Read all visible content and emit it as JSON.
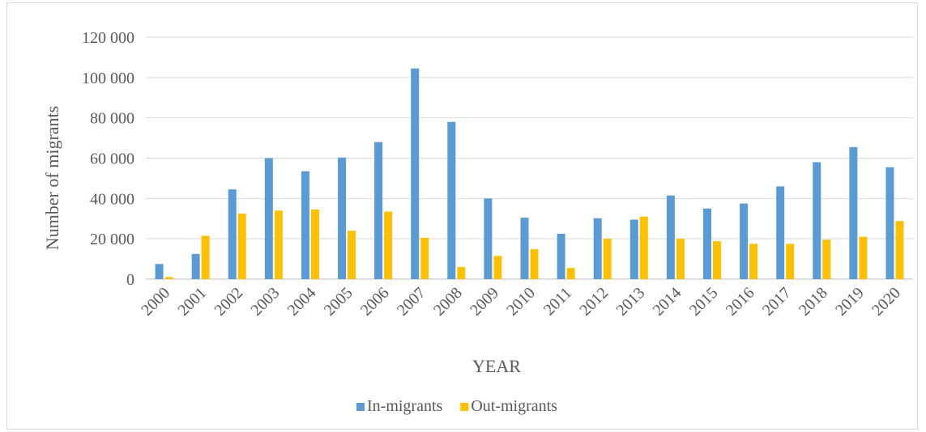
{
  "chart_data": {
    "type": "bar",
    "title": "",
    "xlabel": "YEAR",
    "ylabel": "Number of migrants",
    "ylim": [
      0,
      120000
    ],
    "yticks": [
      0,
      20000,
      40000,
      60000,
      80000,
      100000,
      120000
    ],
    "ytick_labels": [
      "0",
      "20 000",
      "40 000",
      "60 000",
      "80 000",
      "100 000",
      "120 000"
    ],
    "grid": true,
    "legend_position": "bottom",
    "categories": [
      "2000",
      "2001",
      "2002",
      "2003",
      "2004",
      "2005",
      "2006",
      "2007",
      "2008",
      "2009",
      "2010",
      "2011",
      "2012",
      "2013",
      "2014",
      "2015",
      "2016",
      "2017",
      "2018",
      "2019",
      "2020"
    ],
    "series": [
      {
        "name": "In-migrants",
        "color": "#5b9bd5",
        "values": [
          7500,
          12500,
          44500,
          60000,
          53500,
          60300,
          68000,
          104500,
          78000,
          40000,
          30500,
          22500,
          30200,
          29500,
          41500,
          35000,
          37500,
          46000,
          58000,
          65500,
          55500
        ]
      },
      {
        "name": "Out-migrants",
        "color": "#ffc000",
        "values": [
          1000,
          21500,
          32500,
          34000,
          34500,
          24000,
          33500,
          20500,
          6000,
          11500,
          14800,
          5500,
          20000,
          31000,
          20000,
          18800,
          17500,
          17500,
          19500,
          21000,
          28800
        ]
      }
    ]
  }
}
